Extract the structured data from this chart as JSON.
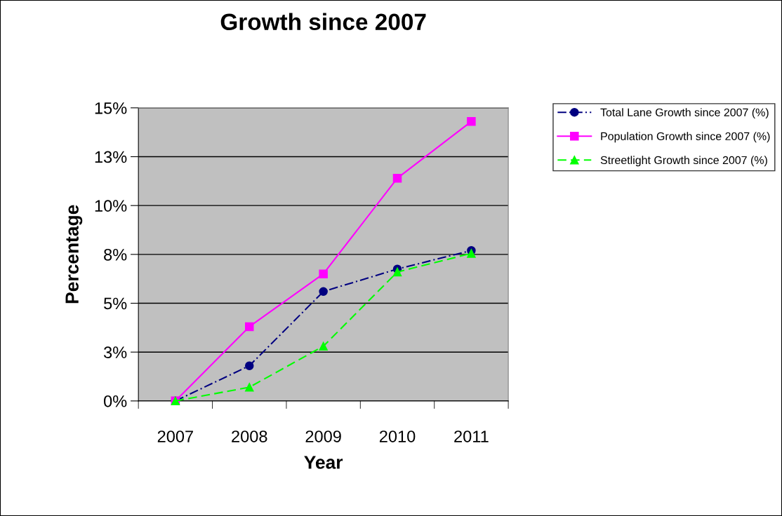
{
  "chart_data": {
    "type": "line",
    "title": "Growth since 2007",
    "xlabel": "Year",
    "ylabel": "Percentage",
    "categories": [
      "2007",
      "2008",
      "2009",
      "2010",
      "2011"
    ],
    "series": [
      {
        "name": "Total Lane Growth since 2007 (%)",
        "color": "#000080",
        "marker": "circle",
        "line_style": "dashdot",
        "values": [
          0,
          1.8,
          5.6,
          6.75,
          7.7
        ]
      },
      {
        "name": "Population Growth since 2007 (%)",
        "color": "#ff00ff",
        "marker": "square",
        "line_style": "solid",
        "values": [
          0,
          3.8,
          6.5,
          11.4,
          14.3
        ]
      },
      {
        "name": "Streetlight Growth since 2007 (%)",
        "color": "#00ff00",
        "marker": "triangle",
        "line_style": "dashed",
        "values": [
          0,
          0.7,
          2.8,
          6.6,
          7.55
        ]
      }
    ],
    "ylim": [
      0,
      15
    ],
    "yticks": [
      {
        "value": 0,
        "label": "0%"
      },
      {
        "value": 2.5,
        "label": "3%"
      },
      {
        "value": 5,
        "label": "5%"
      },
      {
        "value": 7.5,
        "label": "8%"
      },
      {
        "value": 10,
        "label": "10%"
      },
      {
        "value": 12.5,
        "label": "13%"
      },
      {
        "value": 15,
        "label": "15%"
      }
    ],
    "grid": "y",
    "legend": "top right"
  }
}
